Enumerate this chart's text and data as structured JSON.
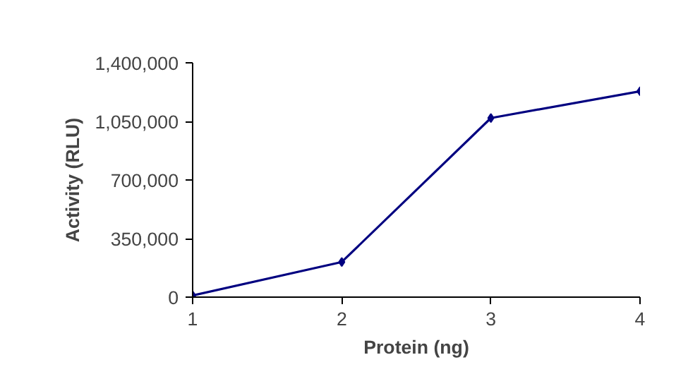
{
  "chart_data": {
    "type": "line",
    "xlabel": "Protein (ng)",
    "ylabel": "Activity (RLU)",
    "x": [
      1,
      2,
      3,
      4
    ],
    "series": [
      {
        "color": "#000080",
        "values": [
          10000,
          210000,
          1070000,
          1230000
        ]
      }
    ],
    "xlim": [
      1,
      4
    ],
    "xticks": [
      1,
      2,
      3,
      4
    ],
    "ylim": [
      0,
      1400000
    ],
    "yticks": [
      0,
      {
        "value": 350000,
        "label": "350,000"
      },
      {
        "value": 700000,
        "label": "700,000"
      },
      {
        "value": 1050000,
        "label": "1,050,000"
      },
      {
        "value": 1400000,
        "label": "1,400,000"
      }
    ],
    "grid": false,
    "marker": "diamond",
    "line_style": "solid"
  }
}
